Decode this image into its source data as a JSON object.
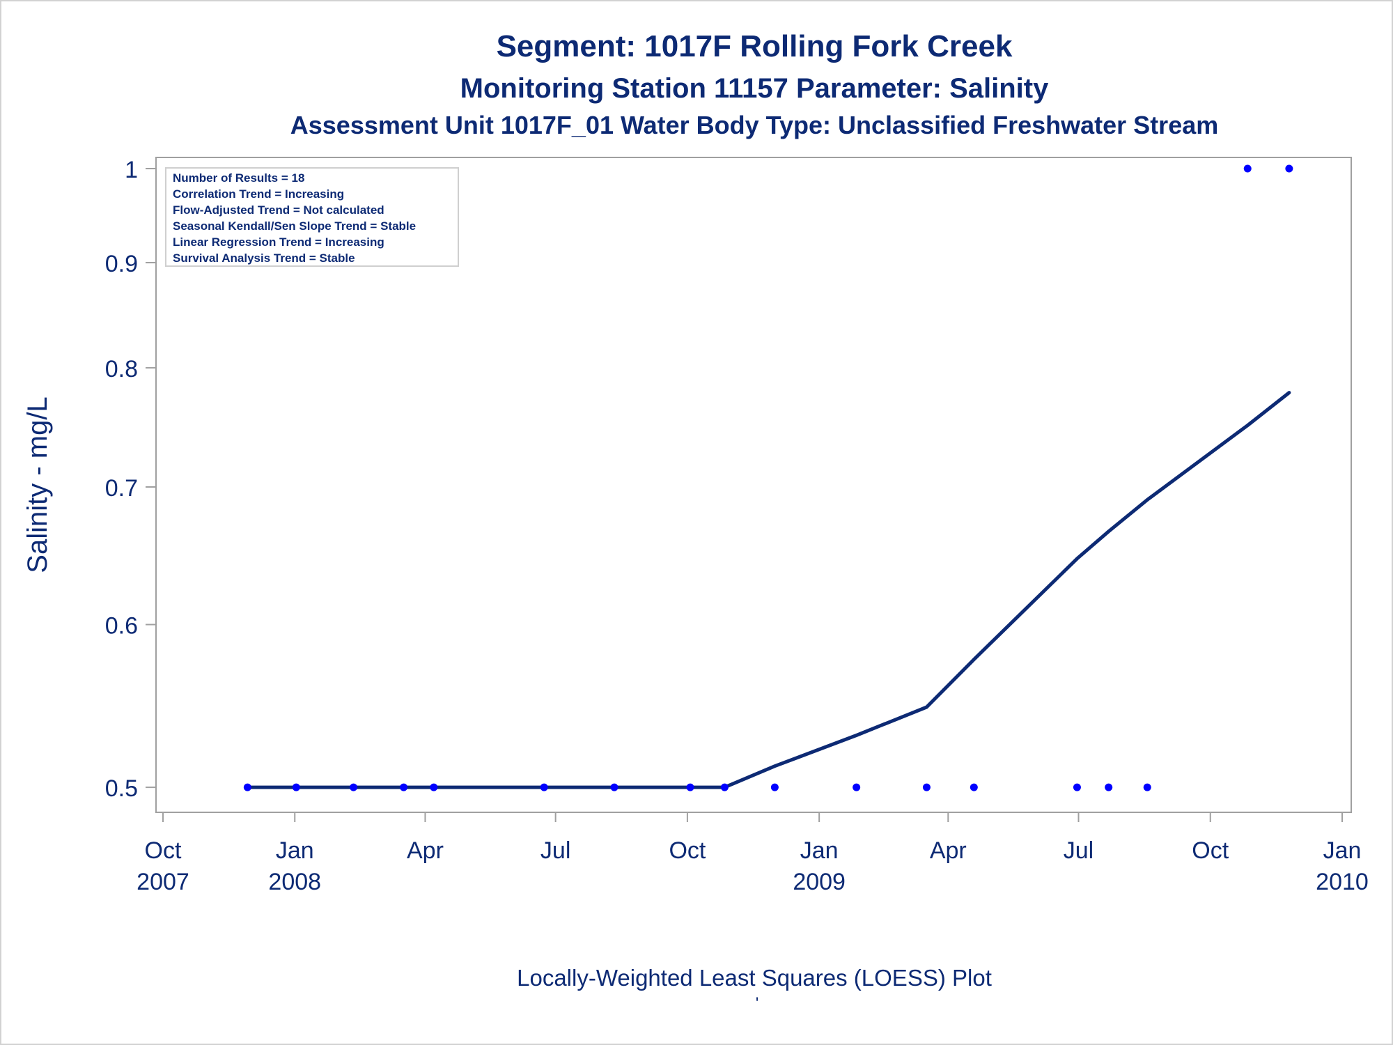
{
  "titles": {
    "line1": "Segment: 1017F  Rolling Fork Creek",
    "line2": "Monitoring Station 11157 Parameter: Salinity",
    "line3": "Assessment Unit 1017F_01   Water Body Type: Unclassified Freshwater Stream"
  },
  "stats_box": {
    "lines": [
      "Number of Results = 18",
      "Correlation Trend = Increasing",
      "Flow-Adjusted Trend = Not calculated",
      "Seasonal Kendall/Sen Slope Trend = Stable",
      "Linear Regression Trend = Increasing",
      "Survival Analysis Trend = Stable"
    ]
  },
  "footnote": {
    "text": "Locally-Weighted Least Squares (LOESS) Plot",
    "mark": "'"
  },
  "colors": {
    "text": "#0d2a74",
    "points": "#0000ff",
    "loess_line": "#0d2a74",
    "frame": "#a0a0a0"
  },
  "chart_data": {
    "type": "scatter",
    "title": "Segment: 1017F  Rolling Fork Creek",
    "ylabel": "Salinity - mg/L",
    "xlabel": "",
    "y_scale": "log",
    "ylim": [
      0.49,
      1.0
    ],
    "xlim": [
      "2007-10-01",
      "2010-01-01"
    ],
    "y_ticks": [
      0.5,
      0.6,
      0.7,
      0.8,
      0.9,
      1
    ],
    "y_tick_labels": [
      "0.5",
      "0.6",
      "0.7",
      "0.8",
      "0.9",
      "1"
    ],
    "x_ticks": [
      {
        "date": "2007-10-01",
        "label1": "Oct",
        "label2": "2007"
      },
      {
        "date": "2008-01-01",
        "label1": "Jan",
        "label2": "2008"
      },
      {
        "date": "2008-04-01",
        "label1": "Apr",
        "label2": ""
      },
      {
        "date": "2008-07-01",
        "label1": "Jul",
        "label2": ""
      },
      {
        "date": "2008-10-01",
        "label1": "Oct",
        "label2": ""
      },
      {
        "date": "2009-01-01",
        "label1": "Jan",
        "label2": "2009"
      },
      {
        "date": "2009-04-01",
        "label1": "Apr",
        "label2": ""
      },
      {
        "date": "2009-07-01",
        "label1": "Jul",
        "label2": ""
      },
      {
        "date": "2009-10-01",
        "label1": "Oct",
        "label2": ""
      },
      {
        "date": "2010-01-01",
        "label1": "Jan",
        "label2": "2010"
      }
    ],
    "grid": false,
    "series": [
      {
        "type": "scatter",
        "points": [
          {
            "x": "2007-11-29",
            "y": 0.5
          },
          {
            "x": "2008-01-02",
            "y": 0.5
          },
          {
            "x": "2008-02-11",
            "y": 0.5
          },
          {
            "x": "2008-03-17",
            "y": 0.5
          },
          {
            "x": "2008-04-07",
            "y": 0.5
          },
          {
            "x": "2008-06-23",
            "y": 0.5
          },
          {
            "x": "2008-08-11",
            "y": 0.5
          },
          {
            "x": "2008-10-03",
            "y": 0.5
          },
          {
            "x": "2008-10-27",
            "y": 0.5
          },
          {
            "x": "2008-12-01",
            "y": 0.5
          },
          {
            "x": "2009-01-27",
            "y": 0.5
          },
          {
            "x": "2009-03-17",
            "y": 0.5
          },
          {
            "x": "2009-04-19",
            "y": 0.5
          },
          {
            "x": "2009-06-30",
            "y": 0.5
          },
          {
            "x": "2009-07-22",
            "y": 0.5
          },
          {
            "x": "2009-08-18",
            "y": 0.5
          },
          {
            "x": "2009-10-27",
            "y": 1.0
          },
          {
            "x": "2009-11-25",
            "y": 1.0
          }
        ]
      },
      {
        "type": "line",
        "points": [
          {
            "x": "2007-11-29",
            "y": 0.5
          },
          {
            "x": "2008-04-07",
            "y": 0.5
          },
          {
            "x": "2008-08-11",
            "y": 0.5
          },
          {
            "x": "2008-10-27",
            "y": 0.5
          },
          {
            "x": "2008-12-01",
            "y": 0.512
          },
          {
            "x": "2009-01-27",
            "y": 0.53
          },
          {
            "x": "2009-03-17",
            "y": 0.547
          },
          {
            "x": "2009-04-19",
            "y": 0.577
          },
          {
            "x": "2009-06-30",
            "y": 0.646
          },
          {
            "x": "2009-07-22",
            "y": 0.666
          },
          {
            "x": "2009-08-18",
            "y": 0.69
          },
          {
            "x": "2009-10-27",
            "y": 0.75
          },
          {
            "x": "2009-11-25",
            "y": 0.778
          }
        ]
      }
    ]
  }
}
